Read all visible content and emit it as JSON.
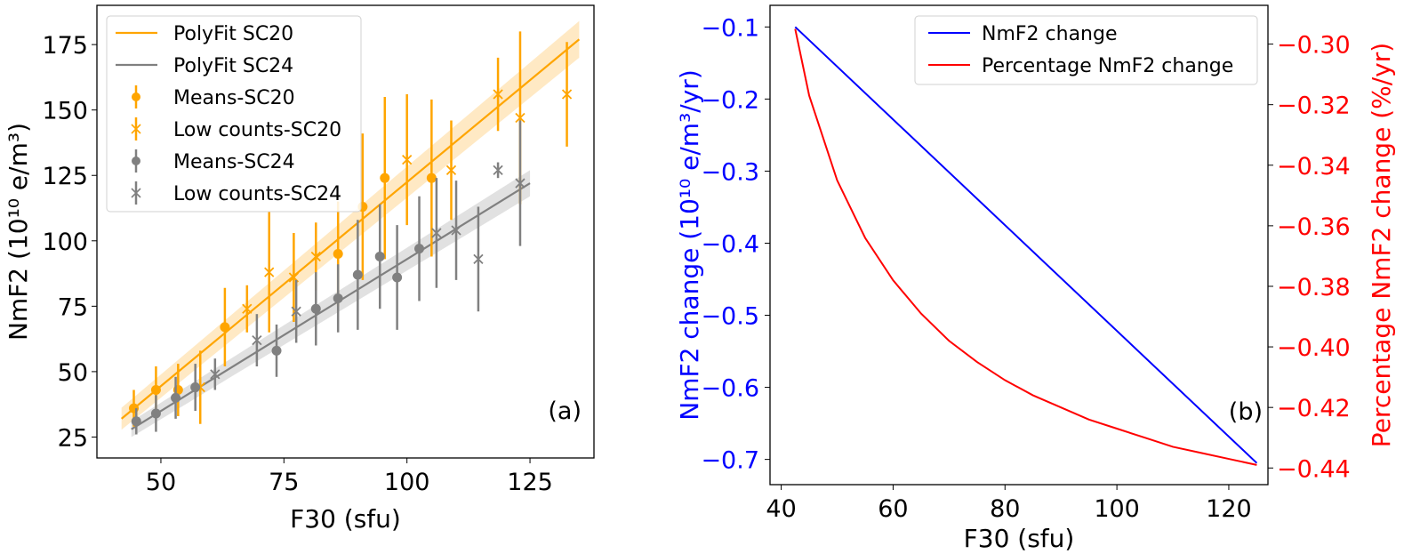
{
  "chart_data": [
    {
      "type": "scatter",
      "panel_label": "(a)",
      "xlabel": "F30 (sfu)",
      "ylabel": "NmF2 (10¹⁰ e/m³)",
      "xlim": [
        37,
        138
      ],
      "ylim": [
        17,
        190
      ],
      "xticks": [
        50,
        75,
        100,
        125
      ],
      "yticks": [
        25,
        50,
        75,
        100,
        125,
        150,
        175
      ],
      "legend_position": "top-left",
      "legend": [
        "PolyFit SC20",
        "PolyFit SC24",
        "Means-SC20",
        "Low counts-SC20",
        "Means-SC24",
        "Low counts-SC24"
      ],
      "colors": {
        "sc20": "#ffa500",
        "sc24": "#808080",
        "sc20_band": "#ffe4b5",
        "sc24_band": "#d9d9d9"
      },
      "fits": [
        {
          "name": "PolyFit SC20",
          "x": [
            42,
            135
          ],
          "y": [
            32,
            177
          ],
          "band": 7
        },
        {
          "name": "PolyFit SC24",
          "x": [
            44,
            125
          ],
          "y": [
            28,
            122
          ],
          "band": 5
        }
      ],
      "series": [
        {
          "name": "Means-SC20",
          "marker": "circle",
          "color": "sc20",
          "points": [
            [
              44.5,
              36,
              7
            ],
            [
              49,
              43,
              9
            ],
            [
              53.5,
              43,
              10
            ],
            [
              63,
              67,
              15
            ],
            [
              86,
              95,
              20
            ],
            [
              91,
              113,
              28
            ],
            [
              95.5,
              124,
              31
            ],
            [
              105,
              124,
              30
            ]
          ]
        },
        {
          "name": "Low counts-SC20",
          "marker": "x",
          "color": "sc20",
          "points": [
            [
              58,
              44,
              14
            ],
            [
              67.5,
              74,
              9
            ],
            [
              72,
              88,
              23
            ],
            [
              77,
              86,
              17
            ],
            [
              81.5,
              94,
              13
            ],
            [
              100,
              131,
              25
            ],
            [
              109,
              127,
              19
            ],
            [
              118.5,
              156,
              14
            ],
            [
              123,
              147,
              33
            ],
            [
              132.5,
              156,
              20
            ]
          ]
        },
        {
          "name": "Means-SC24",
          "marker": "circle",
          "color": "sc24",
          "points": [
            [
              45,
              31,
              5
            ],
            [
              49,
              34,
              7
            ],
            [
              53,
              40,
              8
            ],
            [
              57,
              44,
              9
            ],
            [
              73.5,
              58,
              10
            ],
            [
              81.5,
              74,
              14
            ],
            [
              86,
              78,
              13
            ],
            [
              90,
              87,
              21
            ],
            [
              94.5,
              94,
              20
            ],
            [
              98,
              86,
              20
            ],
            [
              102.5,
              97,
              20
            ]
          ]
        },
        {
          "name": "Low counts-SC24",
          "marker": "x",
          "color": "sc24",
          "points": [
            [
              61,
              49,
              6
            ],
            [
              69.5,
              62,
              10
            ],
            [
              77.5,
              73,
              12
            ],
            [
              106,
              103,
              21
            ],
            [
              110,
              104,
              19
            ],
            [
              114.5,
              93,
              20
            ],
            [
              118.5,
              127,
              3
            ],
            [
              123,
              122,
              24
            ]
          ]
        }
      ]
    },
    {
      "type": "line",
      "panel_label": "(b)",
      "xlabel": "F30 (sfu)",
      "ylabel_left": "NmF2 change (10¹⁰ e/m³/yr)",
      "ylabel_right": "Percentage NmF2 change (%/yr)",
      "xlim": [
        38,
        127
      ],
      "ylim_left": [
        -0.735,
        -0.07
      ],
      "ylim_right": [
        -0.4455,
        -0.2872
      ],
      "xticks": [
        40,
        60,
        80,
        100,
        120
      ],
      "yticks_left": [
        -0.1,
        -0.2,
        -0.3,
        -0.4,
        -0.5,
        -0.6,
        -0.7
      ],
      "yticks_right": [
        -0.3,
        -0.32,
        -0.34,
        -0.36,
        -0.38,
        -0.4,
        -0.42,
        -0.44
      ],
      "legend_position": "top-right",
      "legend": [
        "NmF2 change",
        "Percentage NmF2 change"
      ],
      "colors": {
        "left": "#0000ff",
        "right": "#ff0000"
      },
      "series": [
        {
          "name": "NmF2 change",
          "axis": "left",
          "x": [
            42.5,
            125
          ],
          "y": [
            -0.1,
            -0.705
          ]
        },
        {
          "name": "Percentage NmF2 change",
          "axis": "right",
          "x": [
            42.5,
            45,
            50,
            55,
            60,
            65,
            70,
            75,
            80,
            85,
            90,
            95,
            100,
            105,
            110,
            115,
            120,
            125
          ],
          "y": [
            -0.295,
            -0.317,
            -0.345,
            -0.364,
            -0.378,
            -0.389,
            -0.398,
            -0.405,
            -0.411,
            -0.416,
            -0.42,
            -0.424,
            -0.427,
            -0.43,
            -0.433,
            -0.435,
            -0.437,
            -0.439
          ]
        }
      ]
    }
  ]
}
